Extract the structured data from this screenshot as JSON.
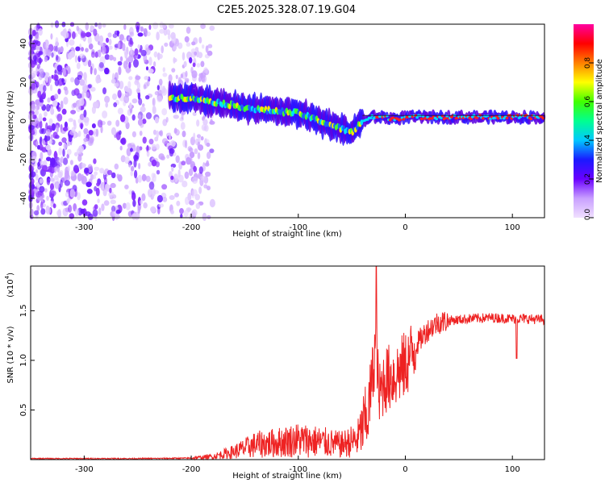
{
  "title": "C2E5.2025.328.07.19.G04",
  "chart_data": [
    {
      "type": "heatmap",
      "name": "spectrogram",
      "xlabel": "Height of straight line (km)",
      "ylabel": "Frequency (Hz)",
      "xlim": [
        -350,
        130
      ],
      "ylim": [
        -50,
        50
      ],
      "xticks": [
        -300,
        -200,
        -100,
        0,
        100
      ],
      "yticks": [
        -40,
        -20,
        0,
        20,
        40
      ],
      "colorbar": {
        "label": "Normalized spectral amplitude",
        "range": [
          0,
          1
        ],
        "ticks": [
          "0.0",
          "0.2",
          "0.4",
          "0.6",
          "0.8"
        ],
        "colors": [
          "#f0e0ff",
          "#c9a0ff",
          "#6a00ff",
          "#1a1aff",
          "#00c8ff",
          "#00ff90",
          "#40ff00",
          "#ffff00",
          "#ff8000",
          "#ff0000",
          "#ff00a0"
        ]
      },
      "signal_track": {
        "x": [
          -220,
          -200,
          -180,
          -160,
          -140,
          -120,
          -100,
          -80,
          -60,
          -50,
          -40,
          -30,
          -20,
          -10,
          0,
          20,
          40,
          60,
          80,
          100,
          130
        ],
        "y": [
          12,
          12,
          10,
          8,
          6,
          5,
          4,
          0,
          -4,
          -6,
          0,
          2,
          2,
          1,
          2,
          2,
          2,
          2,
          2,
          2,
          2
        ]
      },
      "noise_region_x": [
        -350,
        -180
      ]
    },
    {
      "type": "line",
      "name": "snr",
      "xlabel": "Height of straight line (km)",
      "ylabel": "SNR (10 * v/v)",
      "scale_label": "(x10",
      "scale_exp": "4",
      "xlim": [
        -350,
        130
      ],
      "ylim": [
        0,
        1.95
      ],
      "xticks": [
        -300,
        -200,
        -100,
        0,
        100
      ],
      "yticks": [
        "0.5",
        "1.0",
        "1.5"
      ],
      "series": [
        {
          "color": "#ee2222",
          "x": [
            -350,
            -300,
            -250,
            -200,
            -180,
            -160,
            -140,
            -120,
            -100,
            -80,
            -60,
            -45,
            -35,
            -30,
            -27,
            -25,
            -20,
            -10,
            0,
            10,
            20,
            30,
            40,
            60,
            80,
            100,
            110,
            130
          ],
          "y": [
            0.01,
            0.01,
            0.01,
            0.015,
            0.03,
            0.08,
            0.15,
            0.17,
            0.2,
            0.18,
            0.15,
            0.2,
            0.45,
            0.9,
            1.3,
            0.6,
            0.8,
            0.85,
            0.95,
            1.15,
            1.3,
            1.38,
            1.4,
            1.42,
            1.43,
            1.42,
            1.42,
            1.41
          ]
        }
      ]
    }
  ]
}
